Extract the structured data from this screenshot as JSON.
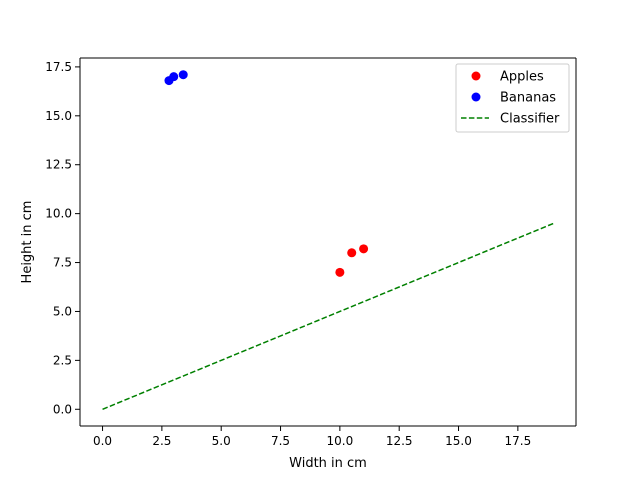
{
  "chart_data": {
    "type": "scatter",
    "title": "",
    "xlabel": "Width in cm",
    "ylabel": "Height in cm",
    "xlim": [
      -0.95,
      19.95
    ],
    "ylim": [
      -0.855,
      17.955
    ],
    "xticks": [
      0.0,
      2.5,
      5.0,
      7.5,
      10.0,
      12.5,
      15.0,
      17.5
    ],
    "xtick_labels": [
      "0.0",
      "2.5",
      "5.0",
      "7.5",
      "10.0",
      "12.5",
      "15.0",
      "17.5"
    ],
    "yticks": [
      0.0,
      2.5,
      5.0,
      7.5,
      10.0,
      12.5,
      15.0,
      17.5
    ],
    "ytick_labels": [
      "0.0",
      "2.5",
      "5.0",
      "7.5",
      "10.0",
      "12.5",
      "15.0",
      "17.5"
    ],
    "grid": false,
    "legend_position": "top-right",
    "series": [
      {
        "name": "Apples",
        "kind": "scatter",
        "color": "#ff0000",
        "points": [
          {
            "x": 10.0,
            "y": 7.0
          },
          {
            "x": 10.5,
            "y": 8.0
          },
          {
            "x": 11.0,
            "y": 8.2
          }
        ]
      },
      {
        "name": "Bananas",
        "kind": "scatter",
        "color": "#0000ff",
        "points": [
          {
            "x": 2.8,
            "y": 16.8
          },
          {
            "x": 3.0,
            "y": 17.0
          },
          {
            "x": 3.4,
            "y": 17.1
          }
        ]
      },
      {
        "name": "Classifier",
        "kind": "line",
        "style": "dashed",
        "color": "#008000",
        "points": [
          {
            "x": 0.0,
            "y": 0.0
          },
          {
            "x": 19.0,
            "y": 9.5
          }
        ]
      }
    ]
  }
}
